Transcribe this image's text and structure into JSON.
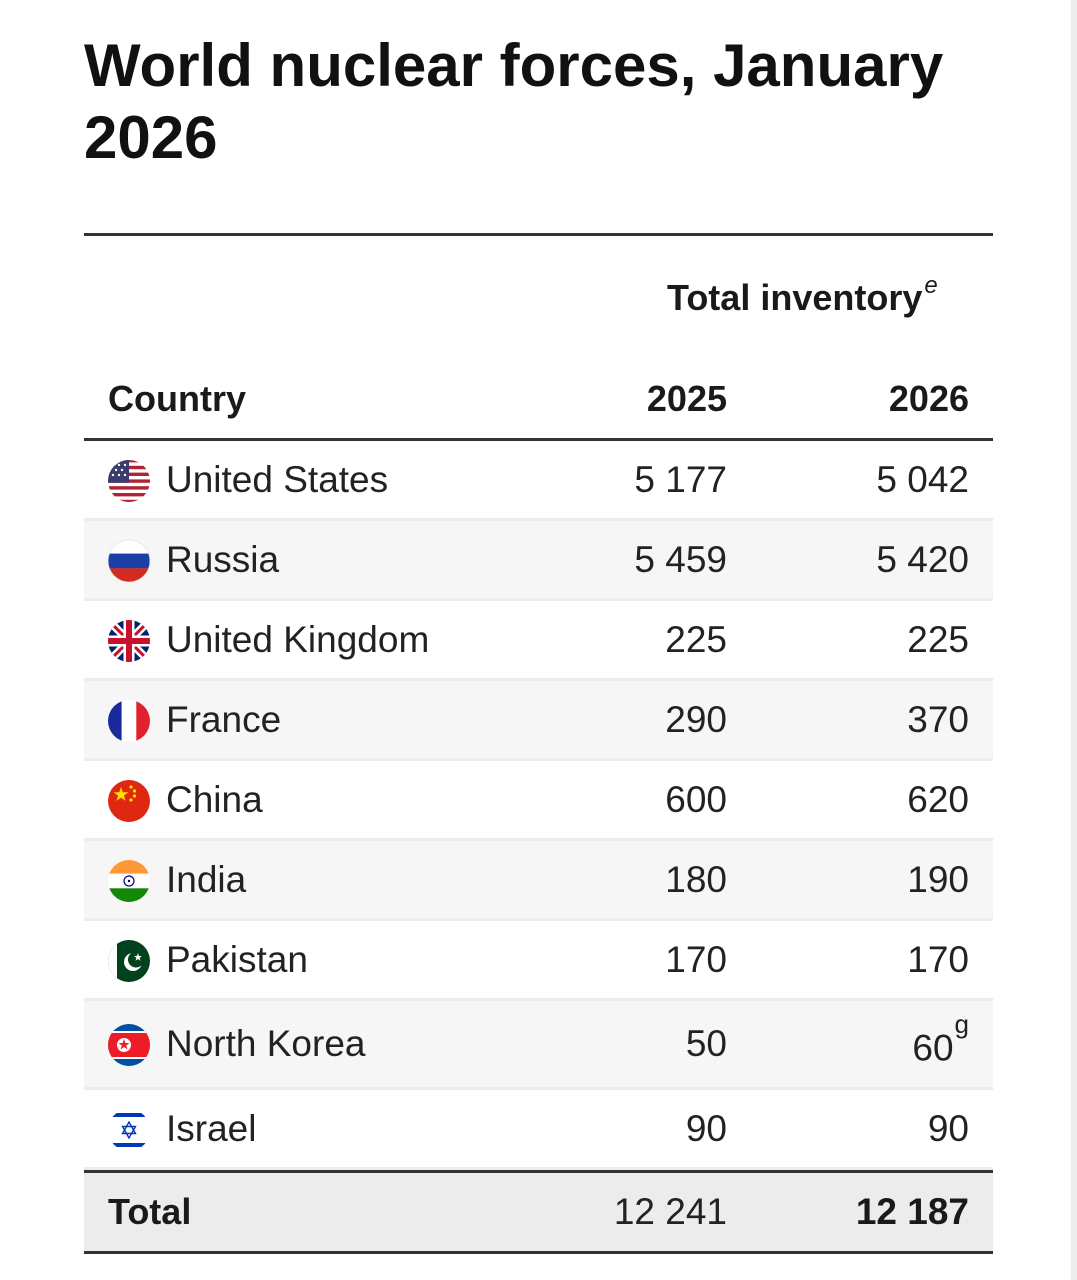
{
  "title": "World nuclear forces, January 2026",
  "table": {
    "group_header": "Total inventory",
    "group_header_note": "e",
    "columns": [
      "Country",
      "2025",
      "2026"
    ],
    "rows": [
      {
        "country": "United States",
        "flag_icon": "us-flag-icon",
        "v2025": "5 177",
        "v2026": "5 042",
        "note2026": ""
      },
      {
        "country": "Russia",
        "flag_icon": "russia-flag-icon",
        "v2025": "5 459",
        "v2026": "5 420",
        "note2026": ""
      },
      {
        "country": "United Kingdom",
        "flag_icon": "uk-flag-icon",
        "v2025": "225",
        "v2026": "225",
        "note2026": ""
      },
      {
        "country": "France",
        "flag_icon": "france-flag-icon",
        "v2025": "290",
        "v2026": "370",
        "note2026": ""
      },
      {
        "country": "China",
        "flag_icon": "china-flag-icon",
        "v2025": "600",
        "v2026": "620",
        "note2026": ""
      },
      {
        "country": "India",
        "flag_icon": "india-flag-icon",
        "v2025": "180",
        "v2026": "190",
        "note2026": ""
      },
      {
        "country": "Pakistan",
        "flag_icon": "pakistan-flag-icon",
        "v2025": "170",
        "v2026": "170",
        "note2026": ""
      },
      {
        "country": "North Korea",
        "flag_icon": "north-korea-flag-icon",
        "v2025": "50",
        "v2026": "60",
        "note2026": "g"
      },
      {
        "country": "Israel",
        "flag_icon": "israel-flag-icon",
        "v2025": "90",
        "v2026": "90",
        "note2026": ""
      }
    ],
    "total": {
      "label": "Total",
      "v2025": "12 241",
      "v2026": "12 187"
    }
  },
  "chart_data": {
    "type": "table",
    "title": "World nuclear forces, January 2026",
    "columns": [
      "Country",
      "2025",
      "2026"
    ],
    "categories": [
      "United States",
      "Russia",
      "United Kingdom",
      "France",
      "China",
      "India",
      "Pakistan",
      "North Korea",
      "Israel"
    ],
    "series": [
      {
        "name": "2025",
        "values": [
          5177,
          5459,
          225,
          290,
          600,
          180,
          170,
          50,
          90
        ]
      },
      {
        "name": "2026",
        "values": [
          5042,
          5420,
          225,
          370,
          620,
          190,
          170,
          60,
          90
        ]
      }
    ],
    "total": {
      "2025": 12241,
      "2026": 12187
    }
  }
}
